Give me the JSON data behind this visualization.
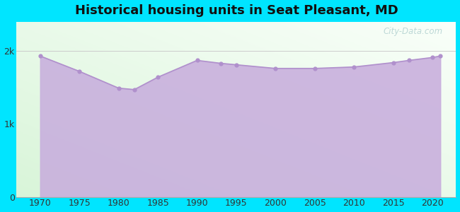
{
  "title": "Historical housing units in Seat Pleasant, MD",
  "title_fontsize": 13,
  "title_fontweight": "bold",
  "background_color": "#00e5ff",
  "fill_color": "#c8aedd",
  "line_color": "#b090cc",
  "marker_color": "#b090cc",
  "years": [
    1970,
    1975,
    1980,
    1982,
    1985,
    1990,
    1993,
    1995,
    2000,
    2005,
    2010,
    2015,
    2017,
    2020,
    2021
  ],
  "values": [
    1930,
    1720,
    1490,
    1470,
    1640,
    1870,
    1830,
    1810,
    1760,
    1760,
    1780,
    1840,
    1870,
    1910,
    1930
  ],
  "ylim": [
    0,
    2400
  ],
  "yticks": [
    0,
    1000,
    2000
  ],
  "yticklabels": [
    "0",
    "1k",
    "2k"
  ],
  "xticks": [
    1970,
    1975,
    1980,
    1985,
    1990,
    1995,
    2000,
    2005,
    2010,
    2015,
    2020
  ],
  "tick_fontsize": 9,
  "watermark": "City-Data.com"
}
